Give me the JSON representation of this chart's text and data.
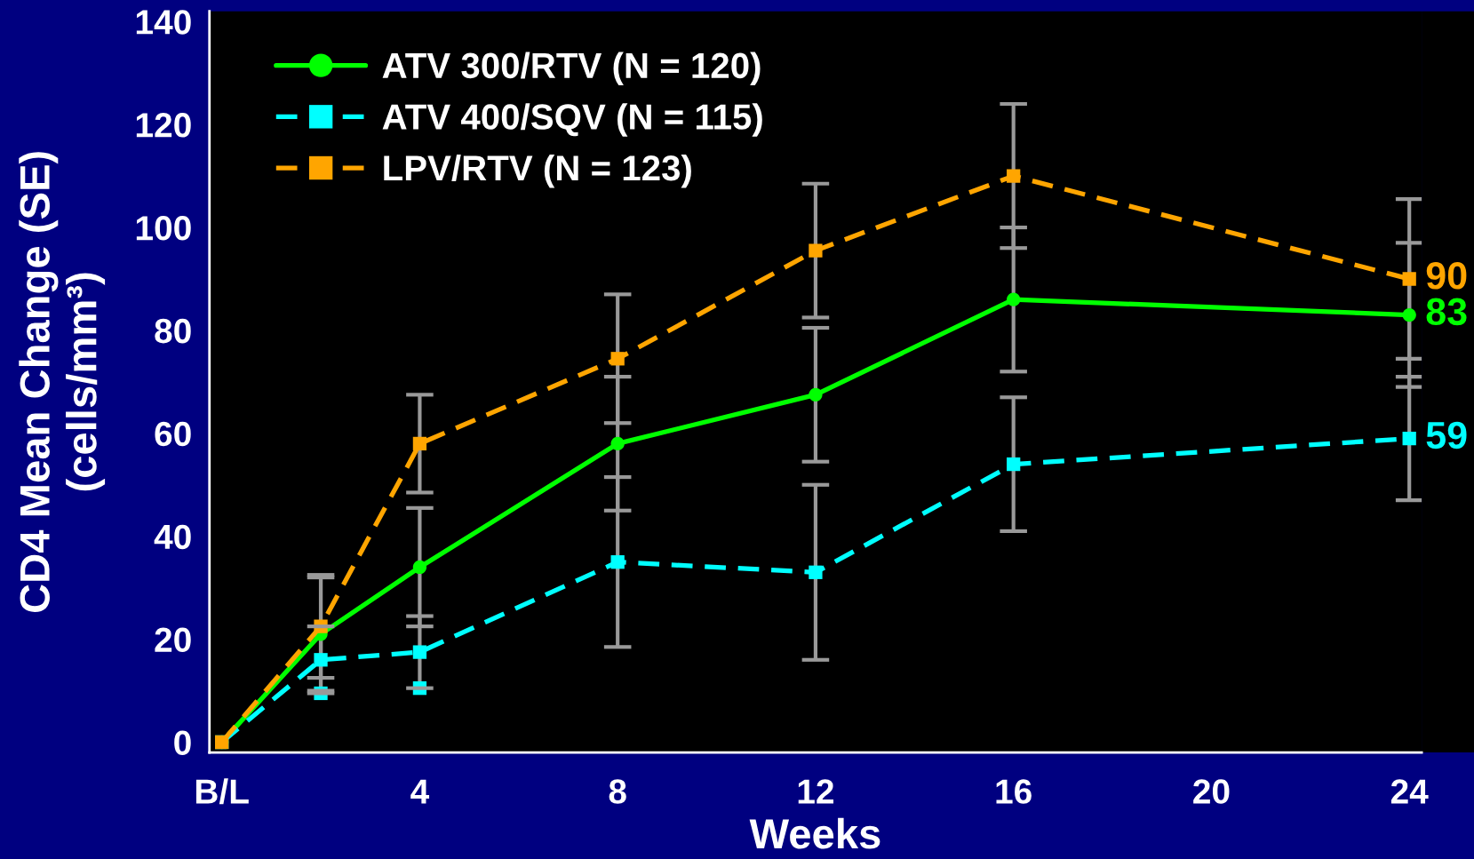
{
  "chart_data": {
    "type": "line",
    "xlabel": "Weeks",
    "ylabel": "CD4 Mean Change (SE)\n(cells/mm³)",
    "x": [
      0,
      2,
      4,
      8,
      12,
      16,
      24
    ],
    "xlim": [
      -0.25,
      24.25
    ],
    "xticks": [
      {
        "value": 0,
        "label": "B/L"
      },
      4,
      8,
      12,
      16,
      20,
      24
    ],
    "ylim": [
      -2,
      142
    ],
    "yticks": [
      0,
      20,
      40,
      60,
      80,
      100,
      120,
      140
    ],
    "legend": "top left",
    "series": [
      {
        "name": "ATV 300/RTV (N = 120)",
        "color": "#00ff00",
        "marker": "circle",
        "line_style": "solid",
        "values": [
          0,
          21,
          34,
          58,
          67.5,
          86,
          83
        ],
        "errors": [
          null,
          11,
          11.5,
          13,
          13,
          14,
          14
        ],
        "value_labels": [
          null,
          null,
          null,
          null,
          null,
          null,
          "83"
        ]
      },
      {
        "name": "ATV 400/SQV (N = 115)",
        "color": "#00ffff",
        "marker": "square",
        "line_style": "dashed",
        "values": [
          0,
          16,
          17.5,
          35,
          33,
          54,
          59
        ],
        "errors": [
          null,
          6.5,
          7,
          16.5,
          17,
          13,
          12
        ],
        "value_labels": [
          null,
          null,
          null,
          null,
          null,
          null,
          "59"
        ]
      },
      {
        "name": "LPV/RTV (N = 123)",
        "color": "#ffa500",
        "marker": "square",
        "line_style": "dashed",
        "values": [
          0,
          22.5,
          58,
          74.5,
          95.5,
          110,
          90
        ],
        "errors": [
          null,
          10,
          9.5,
          12.5,
          13,
          14,
          15.5
        ],
        "value_labels": [
          null,
          null,
          null,
          null,
          null,
          null,
          "90"
        ]
      },
      {
        "type": "scatter",
        "color": "#00ffff",
        "marker": "square",
        "x": [
          2,
          4
        ],
        "values": [
          9.5,
          10.5
        ]
      }
    ]
  }
}
